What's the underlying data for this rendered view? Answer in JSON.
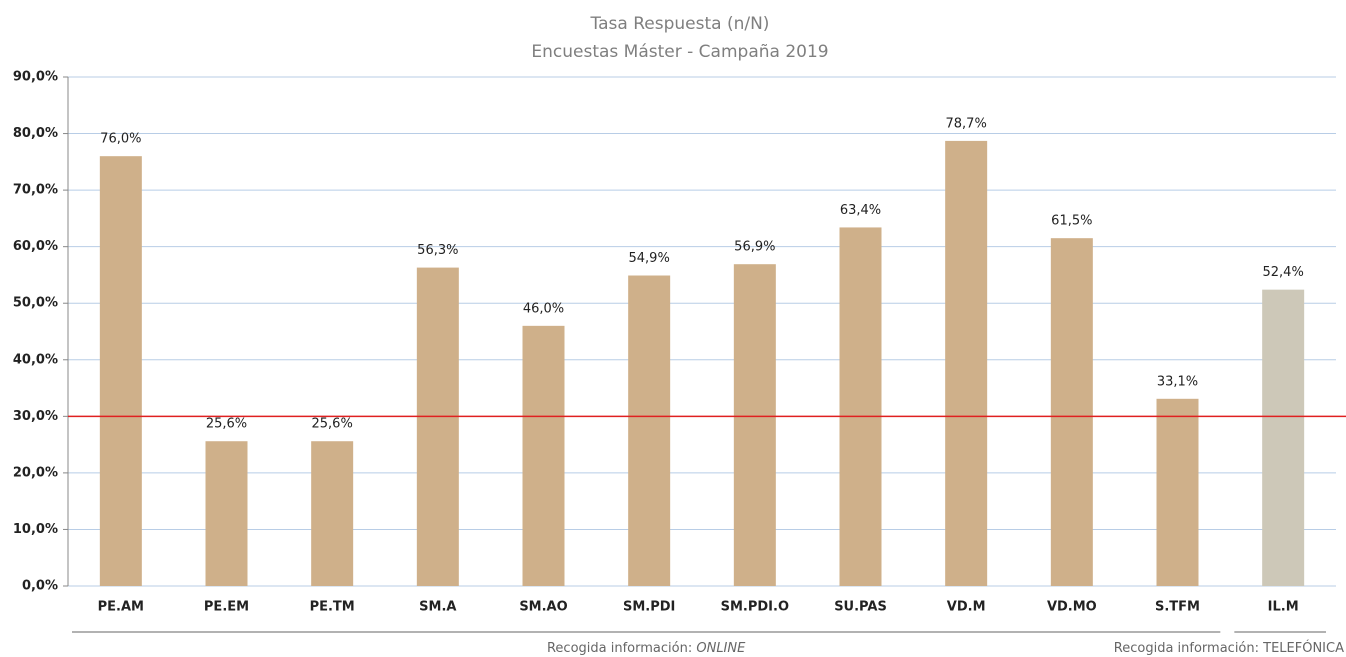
{
  "chart_data": {
    "type": "bar",
    "title": "Tasa Respuesta (n/N)",
    "subtitle": "Encuestas Máster - Campaña 2019",
    "categories": [
      "PE.AM",
      "PE.EM",
      "PE.TM",
      "SM.A",
      "SM.AO",
      "SM.PDI",
      "SM.PDI.O",
      "SU.PAS",
      "VD.M",
      "VD.MO",
      "S.TFM",
      "IL.M"
    ],
    "values": [
      76.0,
      25.6,
      25.6,
      56.3,
      46.0,
      54.9,
      56.9,
      63.4,
      78.7,
      61.5,
      33.1,
      52.4
    ],
    "value_labels": [
      "76,0%",
      "25,6%",
      "25,6%",
      "56,3%",
      "46,0%",
      "54,9%",
      "56,9%",
      "63,4%",
      "78,7%",
      "61,5%",
      "33,1%",
      "52,4%"
    ],
    "colors": [
      "#cfb08a",
      "#cfb08a",
      "#cfb08a",
      "#cfb08a",
      "#cfb08a",
      "#cfb08a",
      "#cfb08a",
      "#cfb08a",
      "#cfb08a",
      "#cfb08a",
      "#cfb08a",
      "#cdc8b8"
    ],
    "ylim": [
      0,
      90
    ],
    "yticks": [
      {
        "value": 0,
        "label": "0,0%"
      },
      {
        "value": 10,
        "label": "10,0%"
      },
      {
        "value": 20,
        "label": "20,0%"
      },
      {
        "value": 30,
        "label": "30,0%"
      },
      {
        "value": 40,
        "label": "40,0%"
      },
      {
        "value": 50,
        "label": "50,0%"
      },
      {
        "value": 60,
        "label": "60,0%"
      },
      {
        "value": 70,
        "label": "70,0%"
      },
      {
        "value": 80,
        "label": "80,0%"
      },
      {
        "value": 90,
        "label": "90,0%"
      }
    ],
    "grid": true,
    "reference_line": {
      "value": 30,
      "color": "#e02020"
    },
    "groups": [
      {
        "label": "Recogida información:",
        "emphasis": "ONLINE",
        "size": 11
      },
      {
        "label": "Recogida información: TELEFÓNICA",
        "size": 1
      }
    ]
  }
}
